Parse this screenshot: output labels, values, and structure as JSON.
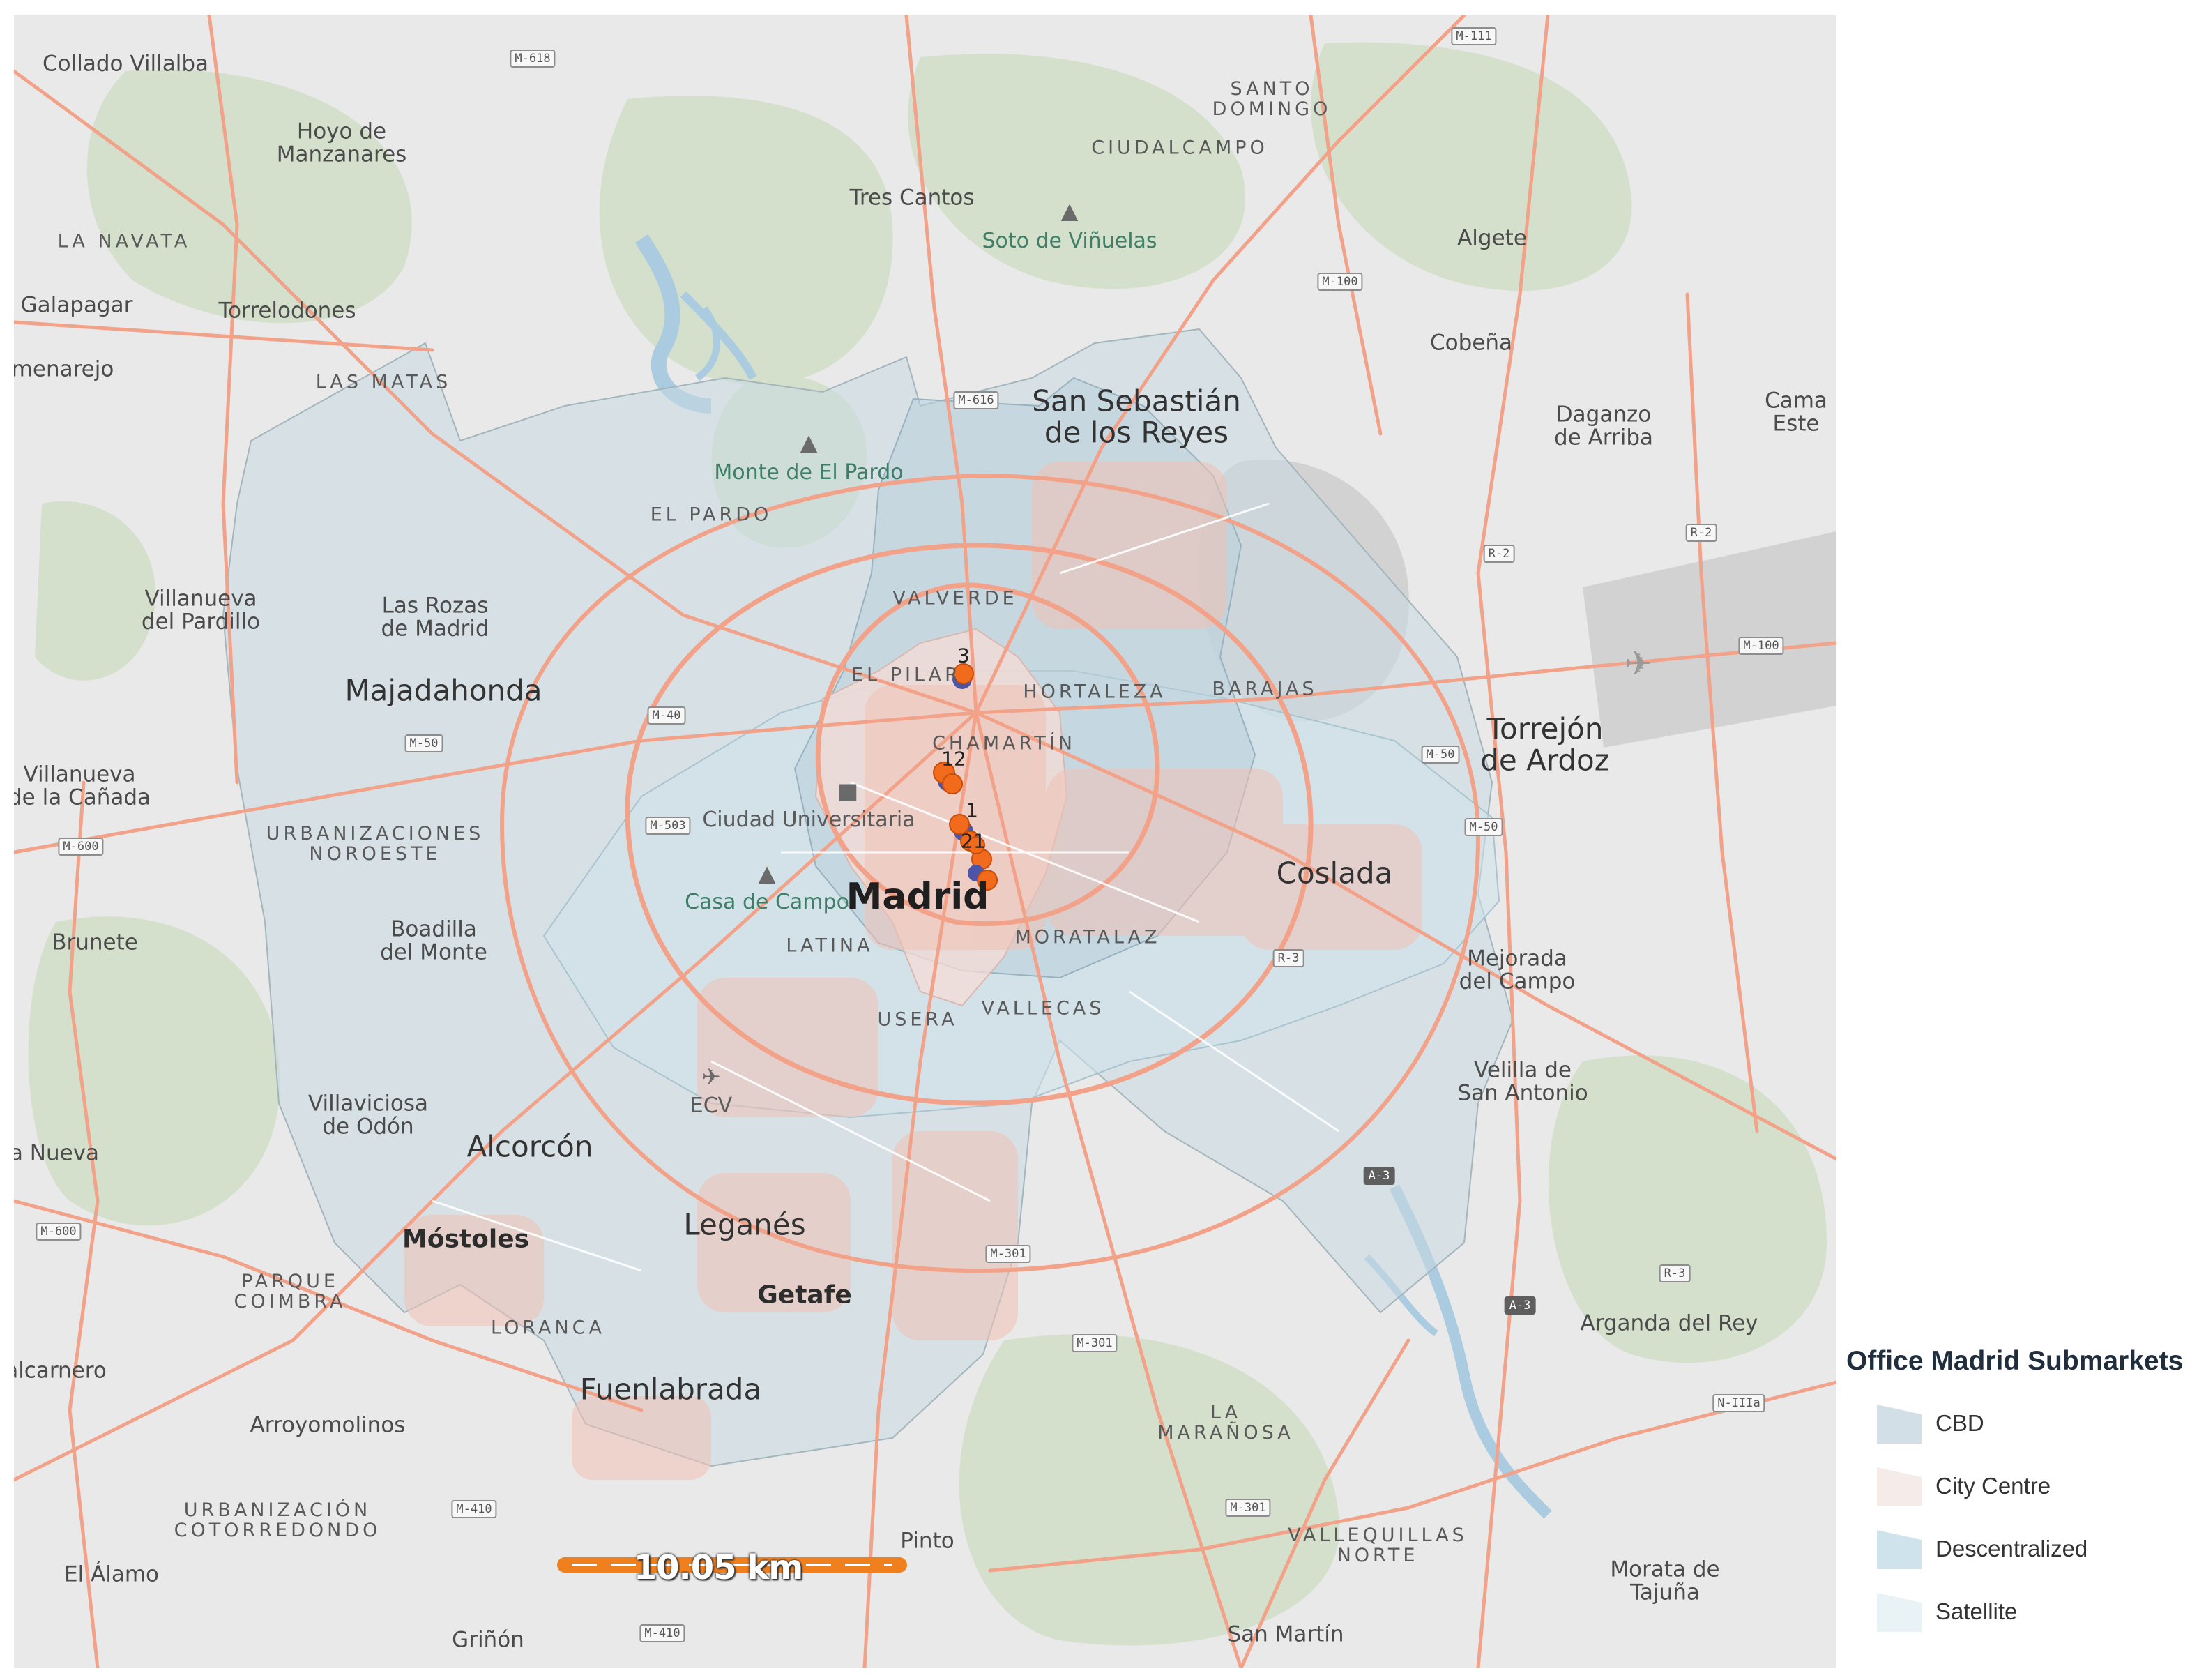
{
  "map": {
    "labels": {
      "collado_villalba": "Collado Villalba",
      "hoyo": "Hoyo de\nManzanares",
      "la_navata": "LA NAVATA",
      "galapagar": "Galapagar",
      "torrelodones": "Torrelodones",
      "colmenarejo": "menarejo",
      "las_matas": "LAS MATAS",
      "tres_cantos": "Tres Cantos",
      "soto": "Soto de Viñuelas",
      "santo_domingo": "SANTO\nDOMINGO",
      "ciudalcampo": "CIUDALCAMPO",
      "algete": "Algete",
      "cobena": "Cobeña",
      "daganzo": "Daganzo\nde Arriba",
      "camarma": "Cama\nEste",
      "san_sebastian": "San Sebastián\nde los Reyes",
      "monte_pardo": "Monte de El Pardo",
      "el_pardo": "EL PARDO",
      "villanueva_pardillo": "Villanueva\ndel Pardillo",
      "las_rozas": "Las Rozas\nde Madrid",
      "majadahonda": "Majadahonda",
      "valverde": "VALVERDE",
      "el_pilar": "EL PILAR",
      "hortaleza": "HORTALEZA",
      "barajas": "BARAJAS",
      "torrejon": "Torrejón\nde Ardoz",
      "chamartin": "CHAMARTÍN",
      "villanueva_canada": "Villanueva\nde la Cañada",
      "urb_noroeste": "URBANIZACIONES\nNOROESTE",
      "ciudad_universitaria": "Ciudad Universitaria",
      "casa_campo": "Casa de Campo",
      "madrid": "Madrid",
      "coslada": "Coslada",
      "brunete": "Brunete",
      "boadilla": "Boadilla\ndel Monte",
      "latina": "LATINA",
      "moratalaz": "MORATALAZ",
      "mejorada": "Mejorada\ndel Campo",
      "usera": "USERA",
      "vallecas": "VALLECAS",
      "velilla": "Velilla de\nSan Antonio",
      "villaviciosa": "Villaviciosa\nde Odón",
      "ecv": "ECV",
      "alcorcon": "Alcorcón",
      "navalcarnero_nueva": "a Nueva",
      "mostoles": "Móstoles",
      "leganes": "Leganés",
      "parque_coimbra": "PARQUE\nCOIMBRA",
      "getafe": "Getafe",
      "loranca": "LORANCA",
      "arganda": "Arganda del Rey",
      "navalcarnero": "alcarnero",
      "fuenlabrada": "Fuenlabrada",
      "arroyomolinos": "Arroyomolinos",
      "la_maranosa": "LA\nMARAÑOSA",
      "urb_cotorredondo": "URBANIZACIÓN\nCOTORREDONDO",
      "pinto": "Pinto",
      "el_alamo": "El Álamo",
      "vallequillas": "VALLEQUILLAS\nNORTE",
      "morata": "Morata de\nTajuña",
      "grinon": "Griñón",
      "san_martin": "San Martín"
    },
    "road_badges": {
      "m618": "M-618",
      "m111": "M-111",
      "m100a": "M-100",
      "m616": "M-616",
      "r2a": "R-2",
      "r2b": "R-2",
      "m100b": "M-100",
      "m40": "M-40",
      "m50a": "M-50",
      "m50b": "M-50",
      "m50c": "M-50",
      "m503": "M-503",
      "m600a": "M-600",
      "r3a": "R-3",
      "a3a": "A-3",
      "m301a": "M-301",
      "m600b": "M-600",
      "r3b": "R-3",
      "a3b": "A-3",
      "n3": "N-IIIa",
      "m301b": "M-301",
      "m410a": "M-410",
      "m301c": "M-301",
      "m410b": "M-410"
    },
    "markers": {
      "cluster_north": "3",
      "cluster_mid": "12",
      "cluster_center": "1",
      "cluster_south": "21"
    },
    "scale_bar": "10.05 km",
    "colors": {
      "background": "#e9e9e9",
      "road": "#f3a28a",
      "water": "#aacbe0",
      "green": "#d2dfc9",
      "cbd": "#d3dfe6",
      "city_centre": "#f5ecea",
      "descentralized": "#cfe3ec",
      "satellite": "#e9f3f6",
      "marker": "#f26a1b",
      "marker_outline": "#4d55a8",
      "scale_bar": "#f07f1e"
    }
  },
  "legend": {
    "title": "Office Madrid Submarkets",
    "items": [
      {
        "label": "CBD",
        "color": "#d3dfe6"
      },
      {
        "label": "City Centre",
        "color": "#f5ecea"
      },
      {
        "label": "Descentralized",
        "color": "#cfe3ec"
      },
      {
        "label": "Satellite",
        "color": "#e9f3f6"
      }
    ]
  }
}
